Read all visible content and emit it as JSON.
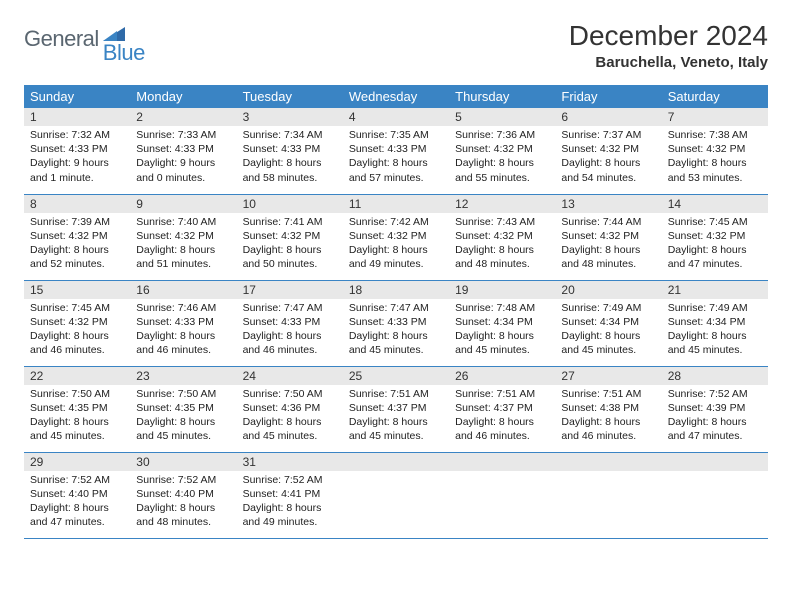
{
  "brand": {
    "text1": "General",
    "text2": "Blue",
    "color_general": "#5a6670",
    "color_blue": "#3a84c4"
  },
  "title": "December 2024",
  "location": "Baruchella, Veneto, Italy",
  "theme": {
    "header_bg": "#3a84c4",
    "header_fg": "#ffffff",
    "daynum_bg": "#e8e8e8",
    "border_color": "#3a84c4",
    "page_bg": "#ffffff"
  },
  "weekdays": [
    "Sunday",
    "Monday",
    "Tuesday",
    "Wednesday",
    "Thursday",
    "Friday",
    "Saturday"
  ],
  "weeks": [
    [
      {
        "n": "1",
        "sr": "7:32 AM",
        "ss": "4:33 PM",
        "dl": "9 hours and 1 minute."
      },
      {
        "n": "2",
        "sr": "7:33 AM",
        "ss": "4:33 PM",
        "dl": "9 hours and 0 minutes."
      },
      {
        "n": "3",
        "sr": "7:34 AM",
        "ss": "4:33 PM",
        "dl": "8 hours and 58 minutes."
      },
      {
        "n": "4",
        "sr": "7:35 AM",
        "ss": "4:33 PM",
        "dl": "8 hours and 57 minutes."
      },
      {
        "n": "5",
        "sr": "7:36 AM",
        "ss": "4:32 PM",
        "dl": "8 hours and 55 minutes."
      },
      {
        "n": "6",
        "sr": "7:37 AM",
        "ss": "4:32 PM",
        "dl": "8 hours and 54 minutes."
      },
      {
        "n": "7",
        "sr": "7:38 AM",
        "ss": "4:32 PM",
        "dl": "8 hours and 53 minutes."
      }
    ],
    [
      {
        "n": "8",
        "sr": "7:39 AM",
        "ss": "4:32 PM",
        "dl": "8 hours and 52 minutes."
      },
      {
        "n": "9",
        "sr": "7:40 AM",
        "ss": "4:32 PM",
        "dl": "8 hours and 51 minutes."
      },
      {
        "n": "10",
        "sr": "7:41 AM",
        "ss": "4:32 PM",
        "dl": "8 hours and 50 minutes."
      },
      {
        "n": "11",
        "sr": "7:42 AM",
        "ss": "4:32 PM",
        "dl": "8 hours and 49 minutes."
      },
      {
        "n": "12",
        "sr": "7:43 AM",
        "ss": "4:32 PM",
        "dl": "8 hours and 48 minutes."
      },
      {
        "n": "13",
        "sr": "7:44 AM",
        "ss": "4:32 PM",
        "dl": "8 hours and 48 minutes."
      },
      {
        "n": "14",
        "sr": "7:45 AM",
        "ss": "4:32 PM",
        "dl": "8 hours and 47 minutes."
      }
    ],
    [
      {
        "n": "15",
        "sr": "7:45 AM",
        "ss": "4:32 PM",
        "dl": "8 hours and 46 minutes."
      },
      {
        "n": "16",
        "sr": "7:46 AM",
        "ss": "4:33 PM",
        "dl": "8 hours and 46 minutes."
      },
      {
        "n": "17",
        "sr": "7:47 AM",
        "ss": "4:33 PM",
        "dl": "8 hours and 46 minutes."
      },
      {
        "n": "18",
        "sr": "7:47 AM",
        "ss": "4:33 PM",
        "dl": "8 hours and 45 minutes."
      },
      {
        "n": "19",
        "sr": "7:48 AM",
        "ss": "4:34 PM",
        "dl": "8 hours and 45 minutes."
      },
      {
        "n": "20",
        "sr": "7:49 AM",
        "ss": "4:34 PM",
        "dl": "8 hours and 45 minutes."
      },
      {
        "n": "21",
        "sr": "7:49 AM",
        "ss": "4:34 PM",
        "dl": "8 hours and 45 minutes."
      }
    ],
    [
      {
        "n": "22",
        "sr": "7:50 AM",
        "ss": "4:35 PM",
        "dl": "8 hours and 45 minutes."
      },
      {
        "n": "23",
        "sr": "7:50 AM",
        "ss": "4:35 PM",
        "dl": "8 hours and 45 minutes."
      },
      {
        "n": "24",
        "sr": "7:50 AM",
        "ss": "4:36 PM",
        "dl": "8 hours and 45 minutes."
      },
      {
        "n": "25",
        "sr": "7:51 AM",
        "ss": "4:37 PM",
        "dl": "8 hours and 45 minutes."
      },
      {
        "n": "26",
        "sr": "7:51 AM",
        "ss": "4:37 PM",
        "dl": "8 hours and 46 minutes."
      },
      {
        "n": "27",
        "sr": "7:51 AM",
        "ss": "4:38 PM",
        "dl": "8 hours and 46 minutes."
      },
      {
        "n": "28",
        "sr": "7:52 AM",
        "ss": "4:39 PM",
        "dl": "8 hours and 47 minutes."
      }
    ],
    [
      {
        "n": "29",
        "sr": "7:52 AM",
        "ss": "4:40 PM",
        "dl": "8 hours and 47 minutes."
      },
      {
        "n": "30",
        "sr": "7:52 AM",
        "ss": "4:40 PM",
        "dl": "8 hours and 48 minutes."
      },
      {
        "n": "31",
        "sr": "7:52 AM",
        "ss": "4:41 PM",
        "dl": "8 hours and 49 minutes."
      },
      {
        "empty": true
      },
      {
        "empty": true
      },
      {
        "empty": true
      },
      {
        "empty": true
      }
    ]
  ],
  "labels": {
    "sunrise": "Sunrise:",
    "sunset": "Sunset:",
    "daylight": "Daylight:"
  }
}
